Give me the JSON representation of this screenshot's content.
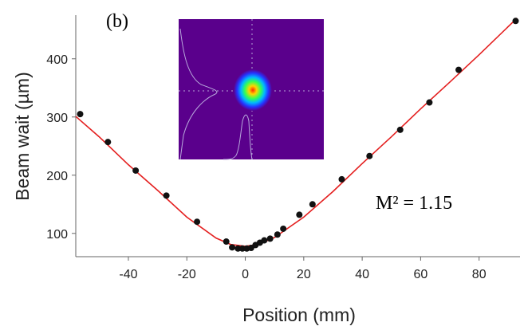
{
  "panel_label": "(b)",
  "annotation": "M² = 1.15",
  "inset": {
    "description_icon": "beam-profile-icon",
    "colors": {
      "background": "#5a008c",
      "peak": "#ff2a00"
    }
  },
  "colors": {
    "fit_line": "#e41f1f",
    "markers": "#111111",
    "axes": "#666666"
  },
  "chart_data": {
    "type": "scatter",
    "title": "",
    "xlabel": "Position (mm)",
    "ylabel": "Beam wait (µm)",
    "xlim": [
      -58,
      94
    ],
    "ylim": [
      60,
      475
    ],
    "xticks": [
      -40,
      -20,
      0,
      20,
      40,
      60,
      80
    ],
    "yticks": [
      100,
      200,
      300,
      400
    ],
    "grid": false,
    "series": [
      {
        "name": "",
        "kind": "points",
        "x": [
          -56.5,
          -47,
          -37.5,
          -27,
          -16.5,
          -6.5,
          -4.5,
          -2.5,
          -1,
          0.5,
          2,
          3.5,
          5,
          6.5,
          8.5,
          11,
          13,
          18.5,
          23,
          33,
          42.5,
          53,
          63,
          73,
          92.5
        ],
        "y": [
          305,
          257,
          208,
          165,
          120,
          86,
          76,
          74,
          74,
          74,
          75,
          80,
          84,
          88,
          91,
          98,
          108,
          132,
          150,
          193,
          233,
          278,
          325,
          381,
          465
        ]
      },
      {
        "name": "",
        "kind": "fit",
        "x": [
          -58,
          -50,
          -40,
          -30,
          -20,
          -10,
          -5,
          0,
          3,
          5,
          10,
          20,
          30,
          40,
          50,
          60,
          70,
          80,
          93
        ],
        "y": [
          301,
          266,
          218,
          174,
          128,
          92,
          81,
          78,
          80,
          82,
          93,
          128,
          172,
          220,
          266,
          314,
          360,
          407,
          470
        ]
      }
    ]
  }
}
